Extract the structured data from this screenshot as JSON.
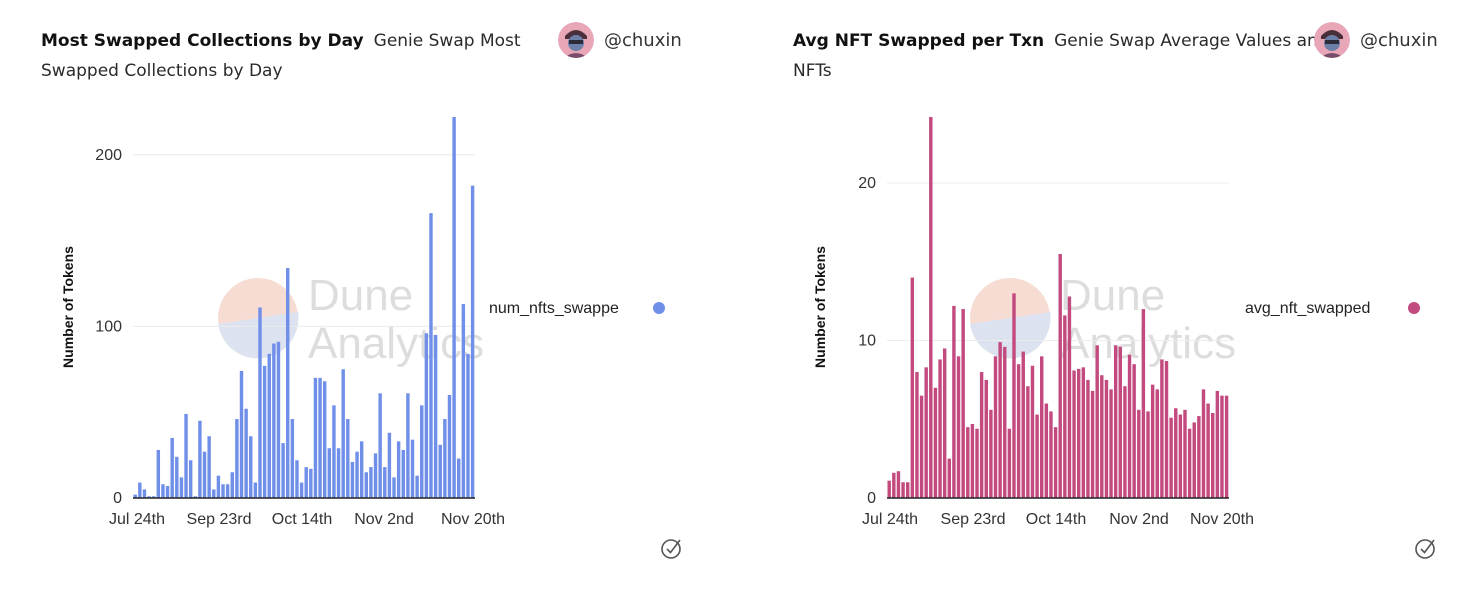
{
  "charts": [
    {
      "title": "Most Swapped Collections by Day",
      "subtitle": "Genie Swap Most Swapped Collections by Day",
      "author": "@chuxin",
      "watermark_line1": "Dune",
      "watermark_line2": "Analytics",
      "ylabel": "Number of Tokens",
      "legend": "num_nfts_swappe",
      "color": "#6f8fe8",
      "avatar_icon": "user-avatar-icon",
      "check_icon": "check-circle-icon"
    },
    {
      "title": "Avg NFT Swapped per Txn",
      "subtitle": "Genie Swap Average Values and NFTs",
      "author": "@chuxin",
      "watermark_line1": "Dune",
      "watermark_line2": "Analytics",
      "ylabel": "Number of Tokens",
      "legend": "avg_nft_swapped",
      "color": "#c34a7e",
      "avatar_icon": "user-avatar-icon",
      "check_icon": "check-circle-icon"
    }
  ],
  "chart_data": [
    {
      "type": "bar",
      "title": "Most Swapped Collections by Day",
      "xlabel": "",
      "ylabel": "Number of Tokens",
      "xticks": [
        "Jul 24th",
        "Sep 23rd",
        "Oct 14th",
        "Nov 2nd",
        "Nov 20th"
      ],
      "yticks": [
        0,
        100,
        200
      ],
      "ylim": [
        0,
        222
      ],
      "grid": true,
      "legend_position": "right",
      "series": [
        {
          "name": "num_nfts_swapped",
          "values": [
            2,
            9,
            5,
            1,
            1,
            28,
            8,
            7,
            35,
            24,
            12,
            49,
            22,
            1,
            45,
            27,
            36,
            5,
            13,
            8,
            8,
            15,
            46,
            74,
            52,
            36,
            9,
            111,
            77,
            84,
            90,
            91,
            32,
            134,
            46,
            22,
            9,
            18,
            17,
            70,
            70,
            68,
            29,
            54,
            29,
            75,
            46,
            21,
            27,
            33,
            15,
            18,
            26,
            61,
            18,
            38,
            12,
            33,
            28,
            61,
            34,
            13,
            54,
            96,
            166,
            95,
            31,
            46,
            60,
            222,
            23,
            113,
            84,
            182
          ]
        }
      ]
    },
    {
      "type": "bar",
      "title": "Avg NFT Swapped per Txn",
      "xlabel": "",
      "ylabel": "Number of Tokens",
      "xticks": [
        "Jul 24th",
        "Sep 23rd",
        "Oct 14th",
        "Nov 2nd",
        "Nov 20th"
      ],
      "yticks": [
        0,
        10,
        20
      ],
      "ylim": [
        0,
        24.2
      ],
      "grid": true,
      "legend_position": "right",
      "series": [
        {
          "name": "avg_nft_swapped",
          "values": [
            1.1,
            1.6,
            1.7,
            1.0,
            1.0,
            14.0,
            8.0,
            6.5,
            8.3,
            24.2,
            7.0,
            8.8,
            9.5,
            2.5,
            12.2,
            9.0,
            12.0,
            4.5,
            4.7,
            4.4,
            8.0,
            7.5,
            5.6,
            9.0,
            9.9,
            9.6,
            4.4,
            13.0,
            8.5,
            9.3,
            7.1,
            8.4,
            5.3,
            9.0,
            6.0,
            5.5,
            4.5,
            15.5,
            11.6,
            12.8,
            8.1,
            8.2,
            8.3,
            7.5,
            6.8,
            9.7,
            7.8,
            7.5,
            6.9,
            9.7,
            9.6,
            7.1,
            9.1,
            8.5,
            5.6,
            12.0,
            5.5,
            7.2,
            6.9,
            8.8,
            8.7,
            5.1,
            5.7,
            5.3,
            5.6,
            4.4,
            4.8,
            5.2,
            6.9,
            6.0,
            5.4,
            6.8,
            6.5,
            6.5
          ]
        }
      ]
    }
  ]
}
